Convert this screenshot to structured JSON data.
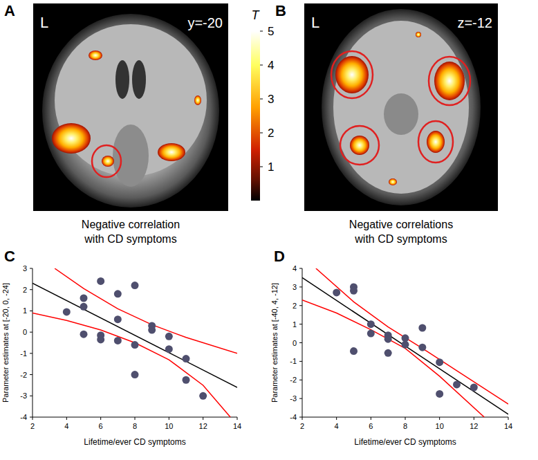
{
  "panels": [
    {
      "letter": "A",
      "side": "L",
      "slice": "y=-20",
      "caption": [
        "Negative correlation",
        "with CD symptoms"
      ]
    },
    {
      "letter": "B",
      "side": "L",
      "slice": "z=-12",
      "caption": [
        "Negative correlations",
        "with CD symptoms"
      ]
    }
  ],
  "colorbar": {
    "label": "T",
    "range": [
      0,
      5
    ],
    "ticks": [
      1,
      2,
      3,
      4,
      5
    ]
  },
  "chart_data": [
    {
      "type": "scatter",
      "title": "C",
      "x_label": "Lifetime/ever CD symptoms",
      "y_label": "Parameter estimates at [-20, 0, -24]",
      "xlim": [
        2,
        14
      ],
      "xticks": [
        2,
        4,
        6,
        8,
        10,
        12,
        14
      ],
      "ylim": [
        -4,
        3
      ],
      "yticks": [
        -4,
        -3,
        -2,
        -1,
        0,
        1,
        2,
        3
      ],
      "series": [
        {
          "type": "scatter",
          "marker": "circle",
          "color": "#4f4f6e",
          "x": [
            4,
            5,
            5,
            5,
            6,
            6,
            6,
            7,
            7,
            7,
            8,
            8,
            8,
            9,
            9,
            10,
            10,
            11,
            11,
            12
          ],
          "values": [
            0.95,
            1.6,
            1.2,
            -0.1,
            2.4,
            -0.15,
            -0.35,
            1.8,
            0.6,
            -0.4,
            2.2,
            -0.6,
            -2.0,
            0.3,
            0.1,
            -0.2,
            -0.8,
            -1.25,
            -2.25,
            -3.0
          ]
        },
        {
          "type": "line",
          "line_style": "solid",
          "color": "#000000",
          "x": [
            2,
            14
          ],
          "values": [
            2.3,
            -2.6
          ]
        },
        {
          "type": "line",
          "line_style": "solid",
          "color": "#ff0000",
          "x": [
            3.3,
            5,
            7,
            9,
            11,
            14
          ],
          "values": [
            3,
            2.05,
            1.1,
            0.35,
            -0.25,
            -1.0
          ]
        },
        {
          "type": "line",
          "line_style": "solid",
          "color": "#ff0000",
          "x": [
            2,
            4,
            6,
            8,
            10,
            12,
            13.6
          ],
          "values": [
            0.9,
            0.55,
            0.1,
            -0.5,
            -1.3,
            -2.5,
            -4
          ]
        }
      ]
    },
    {
      "type": "scatter",
      "title": "D",
      "x_label": "Lifetime/ever CD symptoms",
      "y_label": "Parameter estimates at [-40, 4, -12]",
      "xlim": [
        2,
        14
      ],
      "xticks": [
        2,
        4,
        6,
        8,
        10,
        12,
        14
      ],
      "ylim": [
        -4,
        4
      ],
      "yticks": [
        -4,
        -3,
        -2,
        -1,
        0,
        1,
        2,
        3,
        4
      ],
      "series": [
        {
          "type": "scatter",
          "marker": "circle",
          "color": "#4f4f6e",
          "x": [
            4,
            5,
            5,
            5,
            6,
            6,
            7,
            7,
            7,
            8,
            8,
            9,
            9,
            10,
            10,
            11,
            12
          ],
          "values": [
            2.7,
            3.0,
            2.8,
            -0.45,
            1.0,
            0.5,
            0.4,
            0.2,
            -0.55,
            0.25,
            -0.1,
            0.8,
            -0.25,
            -1.05,
            -2.75,
            -2.25,
            -2.4
          ]
        },
        {
          "type": "line",
          "line_style": "solid",
          "color": "#000000",
          "x": [
            2,
            14
          ],
          "values": [
            3.5,
            -3.85
          ]
        },
        {
          "type": "line",
          "line_style": "solid",
          "color": "#ff0000",
          "x": [
            2.8,
            5,
            7,
            9,
            11,
            14
          ],
          "values": [
            4,
            2.2,
            0.85,
            -0.3,
            -1.5,
            -3.3
          ]
        },
        {
          "type": "line",
          "line_style": "solid",
          "color": "#ff0000",
          "x": [
            2,
            4,
            6,
            8,
            10,
            12.6
          ],
          "values": [
            2.3,
            1.6,
            0.7,
            -0.3,
            -1.8,
            -4
          ]
        }
      ]
    }
  ]
}
